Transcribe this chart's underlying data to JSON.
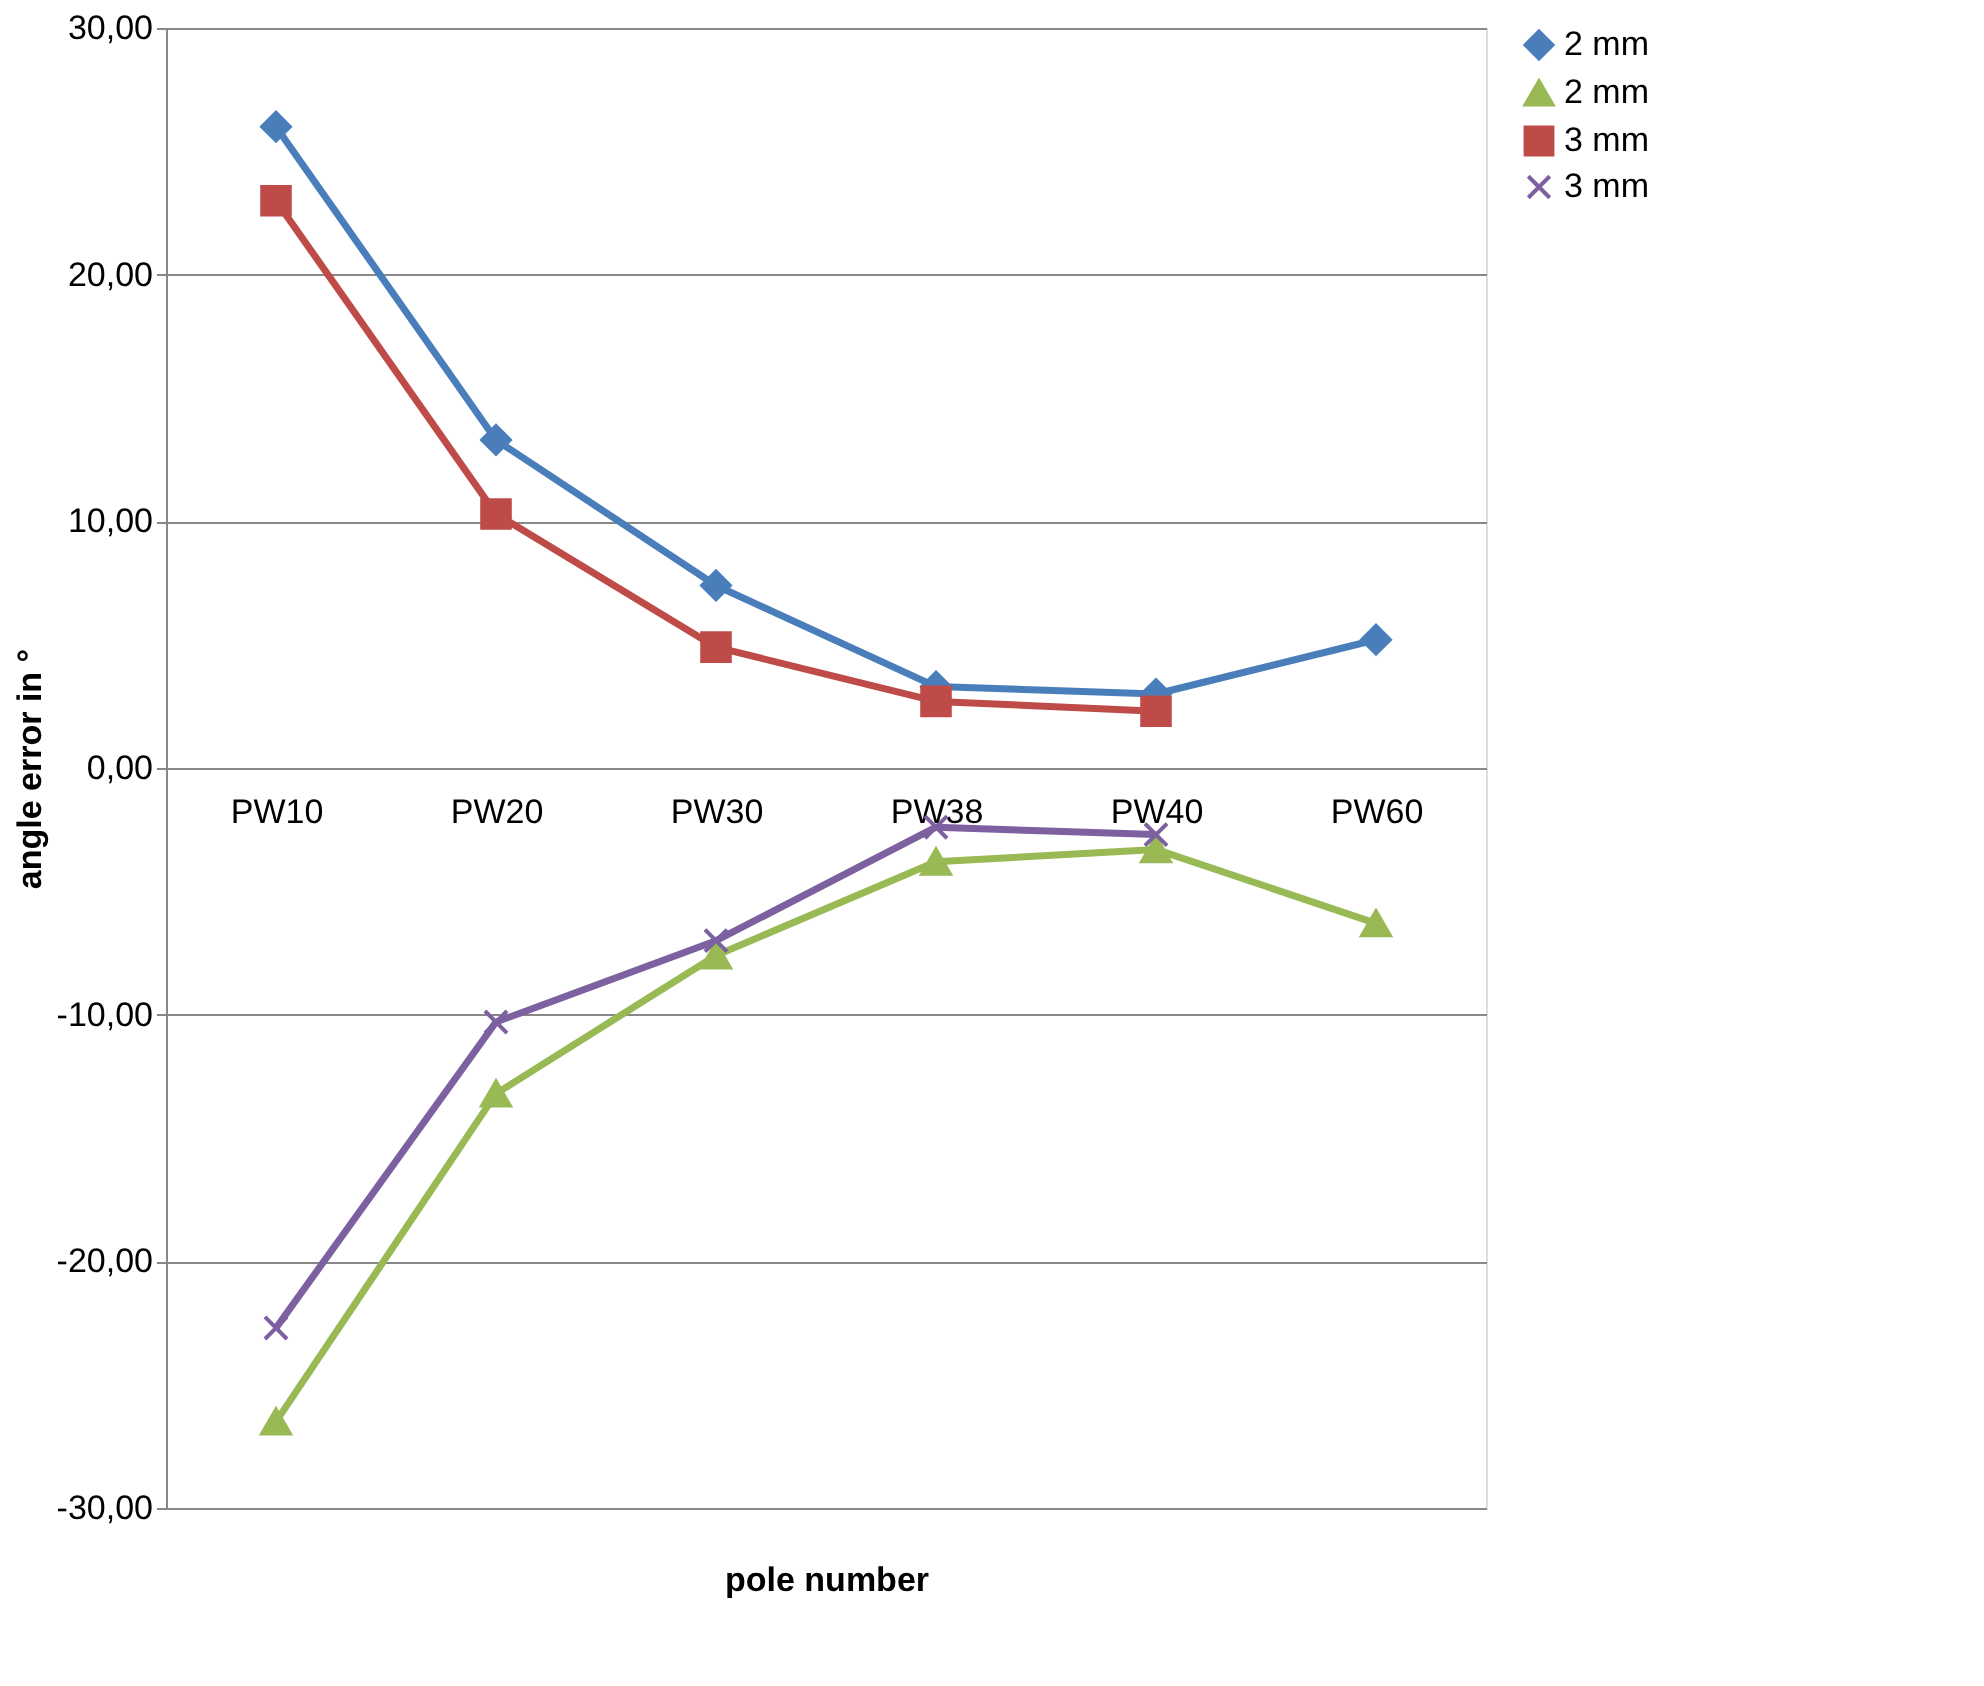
{
  "chart_data": {
    "type": "line",
    "xlabel": "pole number",
    "ylabel": "angle error in °",
    "categories": [
      "PW10",
      "PW20",
      "PW30",
      "PW38",
      "PW40",
      "PW60"
    ],
    "series": [
      {
        "name": "2 mm",
        "color": "#4a7ebb",
        "marker": "diamond",
        "values": [
          26.0,
          13.3,
          7.4,
          3.3,
          3.0,
          5.2
        ]
      },
      {
        "name": "2 mm",
        "color": "#98b954",
        "marker": "triangle",
        "values": [
          -26.5,
          -13.2,
          -7.6,
          -3.8,
          -3.3,
          -6.3
        ]
      },
      {
        "name": "3 mm",
        "color": "#be4b48",
        "marker": "square",
        "values": [
          23.0,
          10.3,
          4.9,
          2.7,
          2.3,
          null
        ]
      },
      {
        "name": "3 mm",
        "color": "#7d60a0",
        "marker": "cross",
        "values": [
          -22.7,
          -10.3,
          -7.0,
          -2.4,
          -2.7,
          null
        ]
      }
    ],
    "ylim": [
      -30,
      30
    ],
    "yticks": [
      {
        "value": -30,
        "label": "-30,00"
      },
      {
        "value": -20,
        "label": "-20,00"
      },
      {
        "value": -10,
        "label": "-10,00"
      },
      {
        "value": 0,
        "label": "0,00"
      },
      {
        "value": 10,
        "label": "10,00"
      },
      {
        "value": 20,
        "label": "20,00"
      },
      {
        "value": 30,
        "label": "30,00"
      }
    ],
    "grid": "y",
    "legend": "right",
    "line_style": "solid"
  }
}
